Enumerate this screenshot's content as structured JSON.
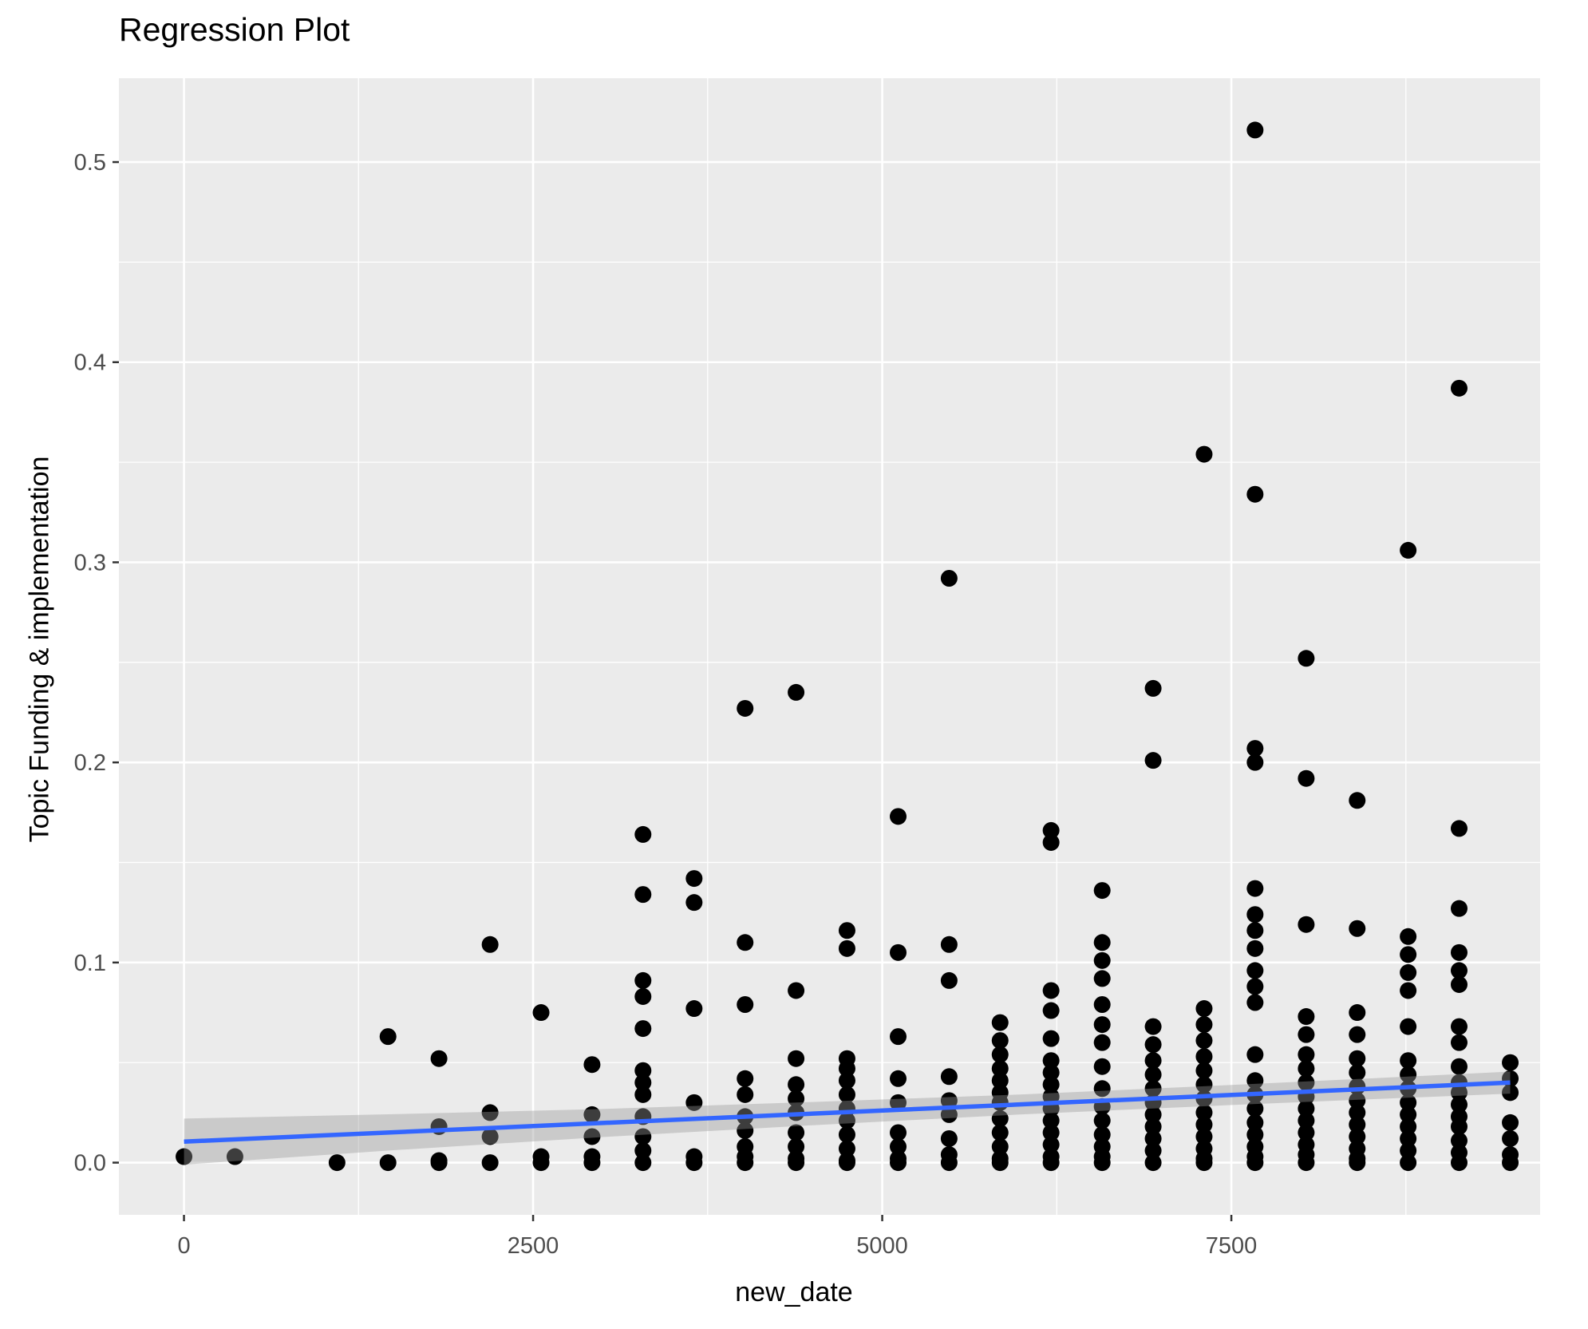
{
  "chart_data": {
    "type": "scatter",
    "title": "Regression Plot",
    "xlabel": "new_date",
    "ylabel": "Topic Funding & implementation",
    "x_ticks": [
      {
        "value": 0,
        "label": "0"
      },
      {
        "value": 2500,
        "label": "2500"
      },
      {
        "value": 5000,
        "label": "5000"
      },
      {
        "value": 7500,
        "label": "7500"
      }
    ],
    "y_ticks": [
      {
        "value": 0.0,
        "label": "0.0"
      },
      {
        "value": 0.1,
        "label": "0.1"
      },
      {
        "value": 0.2,
        "label": "0.2"
      },
      {
        "value": 0.3,
        "label": "0.3"
      },
      {
        "value": 0.4,
        "label": "0.4"
      },
      {
        "value": 0.5,
        "label": "0.5"
      }
    ],
    "x_minor_ticks": [
      1250,
      3750,
      6250,
      8750
    ],
    "y_minor_ticks": [
      0.05,
      0.15,
      0.25,
      0.35,
      0.45
    ],
    "xlim": [
      -466,
      9711
    ],
    "ylim": [
      -0.0261,
      0.5419
    ],
    "grid": "on",
    "legend": "none",
    "columns": [
      {
        "x": 0,
        "values": [
          0.003
        ]
      },
      {
        "x": 365,
        "values": [
          0.003
        ]
      },
      {
        "x": 1096,
        "values": [
          0.0
        ]
      },
      {
        "x": 1461,
        "values": [
          0.063,
          0.0
        ]
      },
      {
        "x": 1826,
        "values": [
          0.052,
          0.018,
          0.001,
          0.0
        ]
      },
      {
        "x": 2192,
        "values": [
          0.109,
          0.025,
          0.013,
          0.0
        ]
      },
      {
        "x": 2557,
        "values": [
          0.075,
          0.003,
          0.0
        ]
      },
      {
        "x": 2922,
        "values": [
          0.049,
          0.024,
          0.013,
          0.003,
          0.0
        ]
      },
      {
        "x": 3287,
        "values": [
          0.164,
          0.134,
          0.091,
          0.083,
          0.067,
          0.046,
          0.04,
          0.034,
          0.023,
          0.013,
          0.006,
          0.0
        ]
      },
      {
        "x": 3653,
        "values": [
          0.142,
          0.13,
          0.077,
          0.03,
          0.003,
          0.0
        ]
      },
      {
        "x": 4018,
        "values": [
          0.227,
          0.11,
          0.079,
          0.042,
          0.034,
          0.023,
          0.016,
          0.008,
          0.003,
          0.0
        ]
      },
      {
        "x": 4383,
        "values": [
          0.235,
          0.086,
          0.052,
          0.039,
          0.032,
          0.025,
          0.015,
          0.008,
          0.002,
          0.0
        ]
      },
      {
        "x": 4748,
        "values": [
          0.116,
          0.107,
          0.052,
          0.047,
          0.041,
          0.034,
          0.027,
          0.021,
          0.014,
          0.007,
          0.001,
          0.0
        ]
      },
      {
        "x": 5114,
        "values": [
          0.173,
          0.105,
          0.063,
          0.042,
          0.03,
          0.015,
          0.008,
          0.002,
          0.0
        ]
      },
      {
        "x": 5479,
        "values": [
          0.292,
          0.109,
          0.091,
          0.043,
          0.031,
          0.024,
          0.012,
          0.004,
          0.0
        ]
      },
      {
        "x": 5844,
        "values": [
          0.07,
          0.061,
          0.054,
          0.047,
          0.041,
          0.035,
          0.03,
          0.022,
          0.015,
          0.008,
          0.002,
          0.0
        ]
      },
      {
        "x": 6209,
        "values": [
          0.166,
          0.16,
          0.086,
          0.076,
          0.062,
          0.051,
          0.045,
          0.039,
          0.033,
          0.027,
          0.021,
          0.015,
          0.009,
          0.003,
          0.0
        ]
      },
      {
        "x": 6575,
        "values": [
          0.136,
          0.11,
          0.101,
          0.092,
          0.079,
          0.069,
          0.06,
          0.048,
          0.037,
          0.028,
          0.021,
          0.014,
          0.008,
          0.003,
          0.0
        ]
      },
      {
        "x": 6940,
        "values": [
          0.237,
          0.201,
          0.068,
          0.059,
          0.051,
          0.044,
          0.037,
          0.03,
          0.024,
          0.018,
          0.012,
          0.006,
          0.0
        ]
      },
      {
        "x": 7305,
        "values": [
          0.354,
          0.077,
          0.069,
          0.061,
          0.053,
          0.046,
          0.039,
          0.032,
          0.025,
          0.019,
          0.013,
          0.007,
          0.002,
          0.0
        ]
      },
      {
        "x": 7670,
        "values": [
          0.516,
          0.334,
          0.207,
          0.2,
          0.137,
          0.124,
          0.116,
          0.107,
          0.096,
          0.088,
          0.08,
          0.054,
          0.041,
          0.034,
          0.027,
          0.02,
          0.014,
          0.008,
          0.003,
          0.0
        ]
      },
      {
        "x": 8036,
        "values": [
          0.252,
          0.192,
          0.119,
          0.073,
          0.064,
          0.054,
          0.047,
          0.04,
          0.033,
          0.027,
          0.021,
          0.015,
          0.009,
          0.004,
          0.0
        ]
      },
      {
        "x": 8401,
        "values": [
          0.181,
          0.117,
          0.075,
          0.064,
          0.052,
          0.045,
          0.038,
          0.031,
          0.025,
          0.019,
          0.013,
          0.007,
          0.002,
          0.0
        ]
      },
      {
        "x": 8766,
        "values": [
          0.306,
          0.113,
          0.104,
          0.095,
          0.086,
          0.068,
          0.051,
          0.044,
          0.037,
          0.03,
          0.024,
          0.018,
          0.012,
          0.006,
          0.0
        ]
      },
      {
        "x": 9131,
        "values": [
          0.387,
          0.167,
          0.127,
          0.105,
          0.096,
          0.089,
          0.068,
          0.06,
          0.048,
          0.04,
          0.035,
          0.029,
          0.023,
          0.018,
          0.011,
          0.005,
          0.0
        ]
      },
      {
        "x": 9497,
        "values": [
          0.05,
          0.042,
          0.035,
          0.02,
          0.012,
          0.004,
          0.0
        ]
      }
    ],
    "regression_line": {
      "x1": 0,
      "y1": 0.0105,
      "x2": 9497,
      "y2": 0.04
    },
    "confidence_band": {
      "x": [
        0,
        1500,
        3000,
        4500,
        6000,
        7500,
        8500,
        9497
      ],
      "upper": [
        0.022,
        0.0242,
        0.0268,
        0.0303,
        0.0341,
        0.0388,
        0.0421,
        0.0455
      ],
      "lower": [
        -0.001,
        0.0062,
        0.0128,
        0.0187,
        0.0241,
        0.0288,
        0.0317,
        0.0345
      ]
    },
    "colors": {
      "panel_background": "#EBEBEB",
      "grid": "#FFFFFF",
      "point": "#000000",
      "line": "#3366FF",
      "band": "#999999",
      "band_opacity": 0.4,
      "tick_label": "#4D4D4D",
      "tick_mark": "#333333",
      "title_text": "#000000"
    }
  }
}
